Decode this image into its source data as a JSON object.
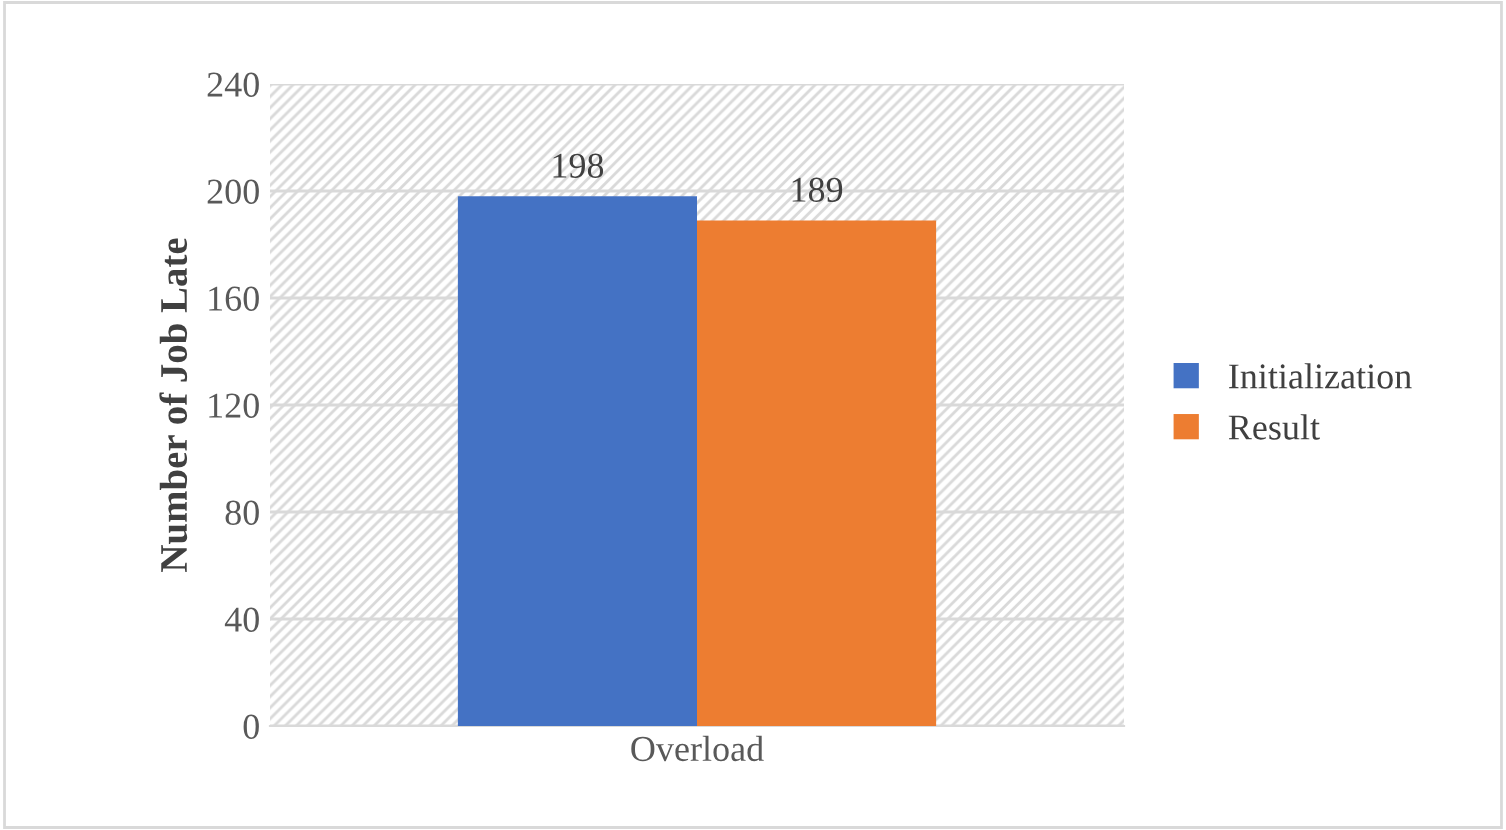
{
  "chart_data": {
    "type": "bar",
    "ylabel": "Number of Job Late",
    "categories": [
      "Overload"
    ],
    "series": [
      {
        "name": "Initialization",
        "color": "#4472c4",
        "values": [
          198
        ]
      },
      {
        "name": "Result",
        "color": "#ed7d31",
        "values": [
          189
        ]
      }
    ],
    "ylim": [
      0,
      240
    ],
    "yticks": [
      0,
      40,
      80,
      120,
      160,
      200,
      240
    ],
    "grid": "y",
    "legend": "right",
    "data_labels": true
  }
}
